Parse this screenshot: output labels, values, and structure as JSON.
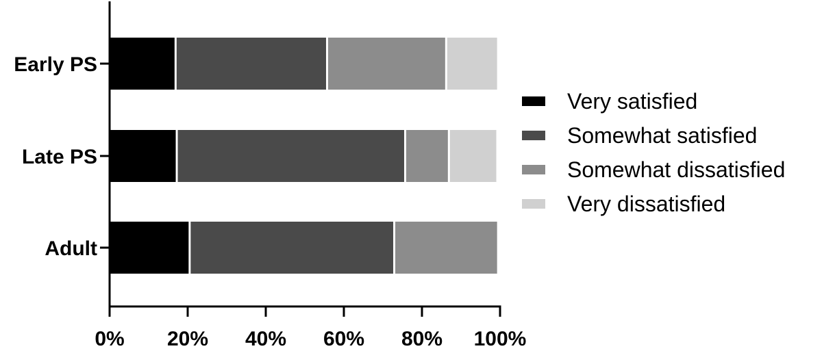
{
  "chart_data": {
    "type": "bar",
    "orientation": "horizontal",
    "stacked": true,
    "categories": [
      "Early PS",
      "Late PS",
      "Adult"
    ],
    "series": [
      {
        "name": "Very satisfied",
        "color": "#000000",
        "values": [
          16.9,
          17.2,
          20.5
        ]
      },
      {
        "name": "Somewhat satisfied",
        "color": "#4a4a4a",
        "values": [
          38.8,
          58.5,
          52.4
        ]
      },
      {
        "name": "Somewhat dissatisfied",
        "color": "#8c8c8c",
        "values": [
          30.5,
          11.2,
          26.6
        ]
      },
      {
        "name": "Very dissatisfied",
        "color": "#d0d0d0",
        "values": [
          13.3,
          12.4,
          0
        ]
      }
    ],
    "x_ticks": [
      "0%",
      "20%",
      "40%",
      "60%",
      "80%",
      "100%"
    ],
    "xlim": [
      0,
      100
    ],
    "title": "",
    "xlabel": "",
    "ylabel": "",
    "grid": false,
    "legend_position": "right"
  }
}
